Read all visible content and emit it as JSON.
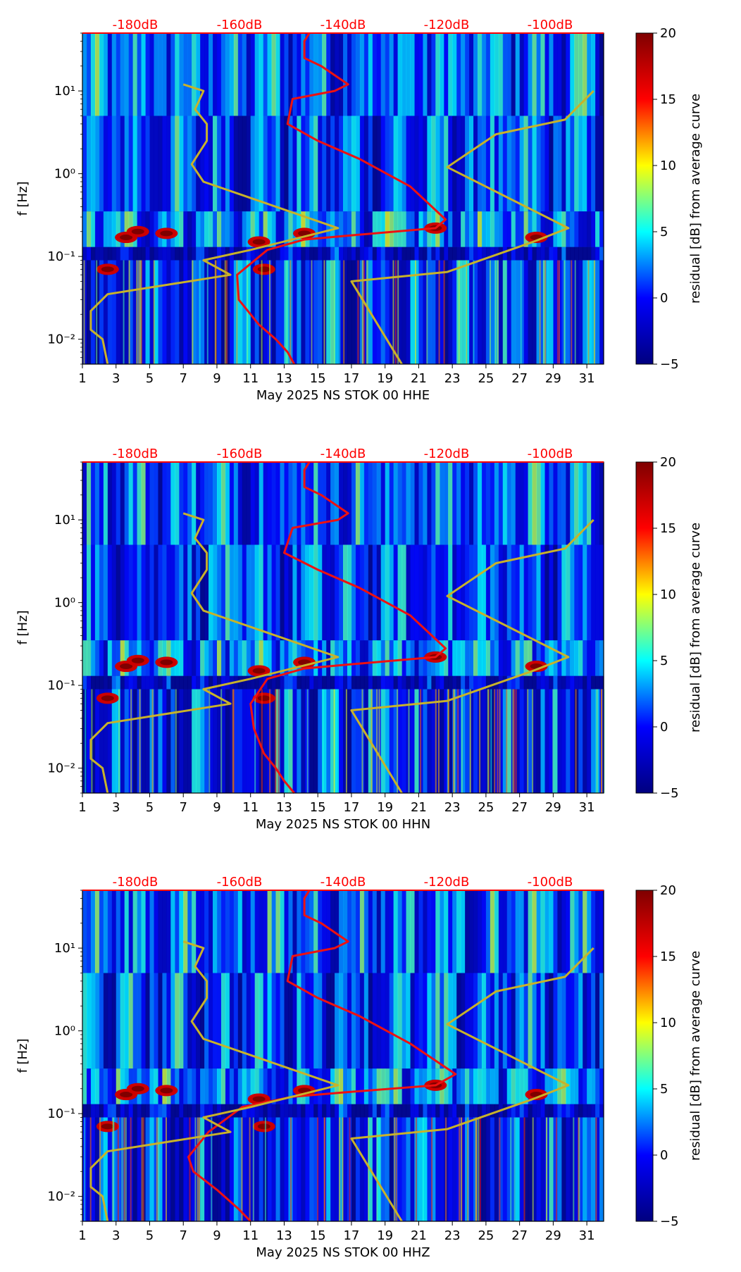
{
  "figure": {
    "title": ""
  },
  "colormap": {
    "stops": [
      "#00007f",
      "#0000ff",
      "#00ffff",
      "#ffff00",
      "#ff0000",
      "#7f0000"
    ],
    "range": [
      -5,
      20
    ]
  },
  "colorbar": {
    "label": "residual [dB] from average curve",
    "ticks": [
      -5,
      0,
      5,
      10,
      15,
      20
    ],
    "tick_labels": [
      "−5",
      "0",
      "5",
      "10",
      "15",
      "20"
    ]
  },
  "top_axis": {
    "labels": [
      "-180dB",
      "-160dB",
      "-140dB",
      "-120dB",
      "-100dB"
    ],
    "color": "#ff0000"
  },
  "chart_data": [
    {
      "type": "heatmap",
      "id": "HHE",
      "title": "",
      "xlabel": "May 2025 NS STOK 00 HHE",
      "ylabel": "f [Hz]",
      "x_ticks": [
        1,
        3,
        5,
        7,
        9,
        11,
        13,
        15,
        17,
        19,
        21,
        23,
        25,
        27,
        29,
        31
      ],
      "x_tick_labels": [
        "1",
        "3",
        "5",
        "7",
        "9",
        "11",
        "13",
        "15",
        "17",
        "19",
        "21",
        "23",
        "25",
        "27",
        "29",
        "31"
      ],
      "xlim": [
        1,
        32
      ],
      "ylim": [
        0.005,
        50
      ],
      "y_scale": "log",
      "y_ticks": [
        0.01,
        0.1,
        1,
        10
      ],
      "y_tick_labels": [
        "10⁻²",
        "10⁻¹",
        "10⁰",
        "10¹"
      ],
      "series": [
        {
          "name": "average PSD (red)",
          "color": "#ee1111",
          "x": [
            14.5,
            14.2,
            14.2,
            15.2,
            16.8,
            16.0,
            13.5,
            13.2,
            15.0,
            17.5,
            20.5,
            22.6,
            22.0,
            17.0,
            14.2,
            12.0,
            10.2,
            10.3,
            11.5,
            12.5,
            13.2,
            13.6
          ],
          "y": [
            50,
            40,
            25,
            20,
            12,
            10,
            8,
            4,
            2.5,
            1.5,
            0.7,
            0.28,
            0.22,
            0.18,
            0.16,
            0.12,
            0.06,
            0.03,
            0.015,
            0.01,
            0.007,
            0.005
          ]
        },
        {
          "name": "noise model (olive)",
          "color": "#c8b22a",
          "x": [
            7.0,
            8.2,
            7.7,
            8.4,
            8.4,
            7.5,
            8.2,
            16.2,
            11.0,
            8.2,
            9.8,
            2.5,
            1.5,
            1.5,
            2.2,
            2.5
          ],
          "y": [
            12,
            10,
            6,
            4,
            2.5,
            1.3,
            0.8,
            0.22,
            0.12,
            0.09,
            0.06,
            0.035,
            0.022,
            0.013,
            0.01,
            0.005
          ]
        },
        {
          "name": "noise model (olive) high",
          "color": "#c8b22a",
          "x": [
            20.0,
            17.0,
            22.7,
            27.8,
            29.9,
            22.7,
            25.6,
            29.7,
            31.4
          ],
          "y": [
            0.005,
            0.05,
            0.065,
            0.15,
            0.22,
            1.2,
            3,
            4.5,
            10
          ]
        }
      ]
    },
    {
      "type": "heatmap",
      "id": "HHN",
      "title": "",
      "xlabel": "May 2025 NS STOK 00 HHN",
      "ylabel": "f [Hz]",
      "x_ticks": [
        1,
        3,
        5,
        7,
        9,
        11,
        13,
        15,
        17,
        19,
        21,
        23,
        25,
        27,
        29,
        31
      ],
      "x_tick_labels": [
        "1",
        "3",
        "5",
        "7",
        "9",
        "11",
        "13",
        "15",
        "17",
        "19",
        "21",
        "23",
        "25",
        "27",
        "29",
        "31"
      ],
      "xlim": [
        1,
        32
      ],
      "ylim": [
        0.005,
        50
      ],
      "y_scale": "log",
      "y_ticks": [
        0.01,
        0.1,
        1,
        10
      ],
      "y_tick_labels": [
        "10⁻²",
        "10⁻¹",
        "10⁰",
        "10¹"
      ],
      "series": [
        {
          "name": "average PSD (red)",
          "color": "#ee1111",
          "x": [
            14.5,
            14.2,
            14.2,
            15.2,
            16.8,
            16.2,
            13.5,
            13.0,
            15.0,
            17.5,
            20.5,
            22.6,
            22.0,
            17.0,
            14.2,
            12.0,
            11.0,
            11.2,
            11.8,
            12.5,
            13.0,
            13.6
          ],
          "y": [
            50,
            40,
            25,
            20,
            12,
            10,
            8,
            4,
            2.5,
            1.5,
            0.7,
            0.28,
            0.22,
            0.18,
            0.16,
            0.12,
            0.06,
            0.03,
            0.015,
            0.01,
            0.007,
            0.005
          ]
        },
        {
          "name": "noise model (olive)",
          "color": "#c8b22a",
          "x": [
            7.0,
            8.2,
            7.7,
            8.4,
            8.4,
            7.5,
            8.2,
            16.2,
            11.0,
            8.2,
            9.8,
            2.5,
            1.5,
            1.5,
            2.2,
            2.5
          ],
          "y": [
            12,
            10,
            6,
            4,
            2.5,
            1.3,
            0.8,
            0.22,
            0.12,
            0.09,
            0.06,
            0.035,
            0.022,
            0.013,
            0.01,
            0.005
          ]
        },
        {
          "name": "noise model (olive) high",
          "color": "#c8b22a",
          "x": [
            20.0,
            17.0,
            22.7,
            27.8,
            29.9,
            22.7,
            25.6,
            29.7,
            31.4
          ],
          "y": [
            0.005,
            0.05,
            0.065,
            0.15,
            0.22,
            1.2,
            3,
            4.5,
            10
          ]
        }
      ]
    },
    {
      "type": "heatmap",
      "id": "HHZ",
      "title": "",
      "xlabel": "May 2025 NS STOK 00 HHZ",
      "ylabel": "f [Hz]",
      "x_ticks": [
        1,
        3,
        5,
        7,
        9,
        11,
        13,
        15,
        17,
        19,
        21,
        23,
        25,
        27,
        29,
        31
      ],
      "x_tick_labels": [
        "1",
        "3",
        "5",
        "7",
        "9",
        "11",
        "13",
        "15",
        "17",
        "19",
        "21",
        "23",
        "25",
        "27",
        "29",
        "31"
      ],
      "xlim": [
        1,
        32
      ],
      "ylim": [
        0.005,
        50
      ],
      "y_scale": "log",
      "y_ticks": [
        0.01,
        0.1,
        1,
        10
      ],
      "y_tick_labels": [
        "10⁻²",
        "10⁻¹",
        "10⁰",
        "10¹"
      ],
      "series": [
        {
          "name": "average PSD (red)",
          "color": "#ee1111",
          "x": [
            14.5,
            14.2,
            14.2,
            15.2,
            16.8,
            16.0,
            13.5,
            13.2,
            15.0,
            17.5,
            20.5,
            23.2,
            22.0,
            16.5,
            13.5,
            10.5,
            8.5,
            7.3,
            7.6,
            9.0,
            10.3,
            11.0
          ],
          "y": [
            50,
            40,
            25,
            20,
            12,
            10,
            8,
            4,
            2.5,
            1.5,
            0.7,
            0.3,
            0.22,
            0.18,
            0.16,
            0.12,
            0.06,
            0.03,
            0.02,
            0.012,
            0.007,
            0.005
          ]
        },
        {
          "name": "noise model (olive)",
          "color": "#c8b22a",
          "x": [
            7.0,
            8.2,
            7.7,
            8.4,
            8.4,
            7.5,
            8.2,
            16.2,
            11.0,
            8.2,
            9.8,
            2.5,
            1.5,
            1.5,
            2.2,
            2.5
          ],
          "y": [
            12,
            10,
            6,
            4,
            2.5,
            1.3,
            0.8,
            0.22,
            0.12,
            0.09,
            0.06,
            0.035,
            0.022,
            0.013,
            0.01,
            0.005
          ]
        },
        {
          "name": "noise model (olive) high",
          "color": "#c8b22a",
          "x": [
            20.0,
            17.0,
            22.7,
            27.8,
            29.9,
            22.7,
            25.6,
            29.7,
            31.4
          ],
          "y": [
            0.005,
            0.05,
            0.065,
            0.15,
            0.22,
            1.2,
            3,
            4.5,
            10
          ]
        }
      ]
    }
  ]
}
